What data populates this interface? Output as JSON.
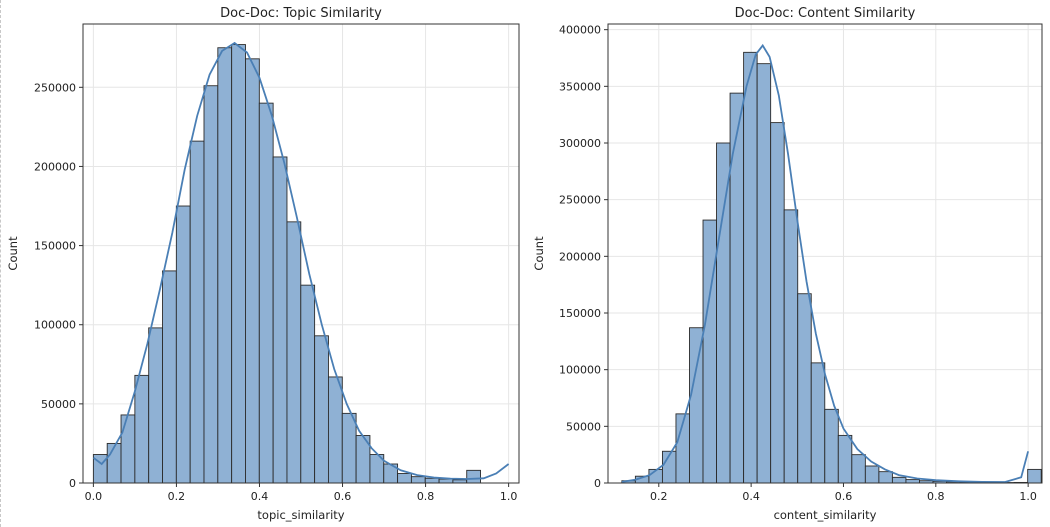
{
  "chart_data": [
    {
      "type": "bar",
      "title": "Doc-Doc: Topic Similarity",
      "xlabel": "topic_similarity",
      "ylabel": "Count",
      "xlim": [
        -0.025,
        1.025
      ],
      "ylim": [
        0,
        290000
      ],
      "xticks": [
        0.0,
        0.2,
        0.4,
        0.6,
        0.8,
        1.0
      ],
      "xtick_labels": [
        "0.0",
        "0.2",
        "0.4",
        "0.6",
        "0.8",
        "1.0"
      ],
      "yticks": [
        0,
        50000,
        100000,
        150000,
        200000,
        250000
      ],
      "ytick_labels": [
        "0",
        "50000",
        "100000",
        "150000",
        "200000",
        "250000"
      ],
      "grid": true,
      "bin_start": 0.0,
      "bin_width": 0.0333,
      "values": [
        18000,
        25000,
        43000,
        68000,
        98000,
        134000,
        175000,
        216000,
        251000,
        275000,
        277000,
        268000,
        240000,
        206000,
        165000,
        125000,
        93000,
        67000,
        44000,
        30000,
        18000,
        12000,
        6000,
        4000,
        3000,
        2500,
        2000,
        8000
      ],
      "kde": [
        [
          0.0,
          16000
        ],
        [
          0.02,
          12000
        ],
        [
          0.04,
          18000
        ],
        [
          0.07,
          32000
        ],
        [
          0.1,
          58000
        ],
        [
          0.13,
          88000
        ],
        [
          0.16,
          122000
        ],
        [
          0.19,
          158000
        ],
        [
          0.22,
          198000
        ],
        [
          0.25,
          232000
        ],
        [
          0.28,
          258000
        ],
        [
          0.31,
          273000
        ],
        [
          0.34,
          278000
        ],
        [
          0.37,
          272000
        ],
        [
          0.4,
          256000
        ],
        [
          0.43,
          232000
        ],
        [
          0.46,
          202000
        ],
        [
          0.49,
          168000
        ],
        [
          0.52,
          132000
        ],
        [
          0.55,
          100000
        ],
        [
          0.58,
          72000
        ],
        [
          0.61,
          50000
        ],
        [
          0.64,
          33000
        ],
        [
          0.67,
          22000
        ],
        [
          0.7,
          14000
        ],
        [
          0.74,
          8000
        ],
        [
          0.78,
          5000
        ],
        [
          0.82,
          3500
        ],
        [
          0.86,
          2800
        ],
        [
          0.9,
          2500
        ],
        [
          0.94,
          3000
        ],
        [
          0.97,
          6000
        ],
        [
          1.0,
          12000
        ]
      ],
      "color": "#4a7fb5",
      "fill": "#8fb1d4"
    },
    {
      "type": "bar",
      "title": "Doc-Doc: Content Similarity",
      "xlabel": "content_similarity",
      "ylabel": "Count",
      "xlim": [
        0.09,
        1.03
      ],
      "ylim": [
        0,
        405000
      ],
      "xticks": [
        0.2,
        0.4,
        0.6,
        0.8,
        1.0
      ],
      "xtick_labels": [
        "0.2",
        "0.4",
        "0.6",
        "0.8",
        "1.0"
      ],
      "yticks": [
        0,
        50000,
        100000,
        150000,
        200000,
        250000,
        300000,
        350000,
        400000
      ],
      "ytick_labels": [
        "0",
        "50000",
        "100000",
        "150000",
        "200000",
        "250000",
        "300000",
        "350000",
        "400000"
      ],
      "grid": true,
      "bin_start": 0.12,
      "bin_width": 0.0293,
      "values": [
        2000,
        6000,
        12000,
        28000,
        61000,
        137000,
        232000,
        300000,
        344000,
        380000,
        370000,
        318000,
        241000,
        167000,
        106000,
        65000,
        42000,
        25000,
        15000,
        10000,
        5000,
        3000,
        2000,
        1500,
        1000,
        800,
        600,
        500,
        400,
        500,
        12000
      ],
      "kde": [
        [
          0.12,
          1000
        ],
        [
          0.15,
          3000
        ],
        [
          0.18,
          7000
        ],
        [
          0.21,
          16000
        ],
        [
          0.24,
          36000
        ],
        [
          0.27,
          78000
        ],
        [
          0.3,
          140000
        ],
        [
          0.33,
          215000
        ],
        [
          0.36,
          290000
        ],
        [
          0.39,
          350000
        ],
        [
          0.41,
          378000
        ],
        [
          0.425,
          386000
        ],
        [
          0.44,
          376000
        ],
        [
          0.46,
          342000
        ],
        [
          0.48,
          290000
        ],
        [
          0.5,
          232000
        ],
        [
          0.52,
          178000
        ],
        [
          0.54,
          132000
        ],
        [
          0.56,
          96000
        ],
        [
          0.58,
          68000
        ],
        [
          0.6,
          48000
        ],
        [
          0.63,
          30000
        ],
        [
          0.66,
          19000
        ],
        [
          0.69,
          12000
        ],
        [
          0.72,
          7000
        ],
        [
          0.76,
          4000
        ],
        [
          0.8,
          2500
        ],
        [
          0.85,
          1500
        ],
        [
          0.9,
          1000
        ],
        [
          0.95,
          900
        ],
        [
          0.985,
          5000
        ],
        [
          1.0,
          28000
        ]
      ],
      "color": "#4a7fb5",
      "fill": "#8fb1d4"
    }
  ]
}
